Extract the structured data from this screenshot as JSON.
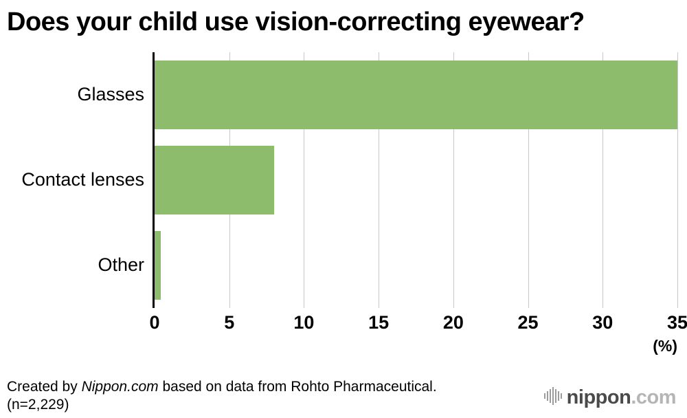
{
  "chart_data": {
    "type": "bar",
    "orientation": "horizontal",
    "title": "Does your child use vision-correcting eyewear?",
    "categories": [
      "Glasses",
      "Contact lenses",
      "Other"
    ],
    "values": [
      35,
      8,
      0.4
    ],
    "xlabel": "(%)",
    "ylabel": "",
    "xlim": [
      0,
      35
    ],
    "xticks": [
      0,
      5,
      10,
      15,
      20,
      25,
      30,
      35
    ],
    "bar_color": "#8dbd6c",
    "grid": true,
    "gridline_color": "#c9c9c9",
    "axis_color": "#000000",
    "legend": false
  },
  "footer": {
    "line1_prefix": "Created by ",
    "line1_source": "Nippon.com",
    "line1_suffix": " based on data from Rohto Pharmaceutical.",
    "line2": "(n=2,229)"
  },
  "branding": {
    "logo_icon": "equalizer-bars-icon",
    "logo_text_main": "nippon",
    "logo_text_suffix": ".com"
  }
}
